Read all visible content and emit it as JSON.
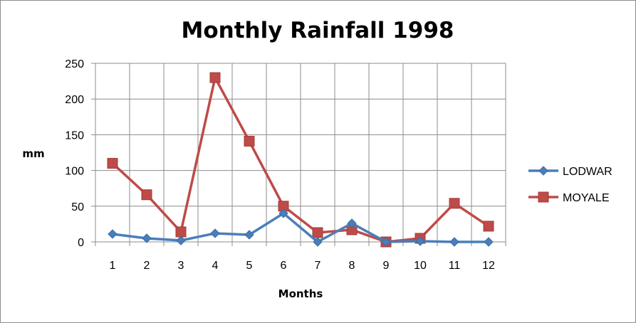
{
  "chart_data": {
    "type": "line",
    "title": "Monthly Rainfall 1998",
    "xlabel": "Months",
    "ylabel": "mm",
    "categories": [
      "1",
      "2",
      "3",
      "4",
      "5",
      "6",
      "7",
      "8",
      "9",
      "10",
      "11",
      "12"
    ],
    "ylim": [
      0,
      250
    ],
    "yticks": [
      0,
      50,
      100,
      150,
      200,
      250
    ],
    "grid": true,
    "legend_position": "right",
    "series": [
      {
        "name": "LODWAR",
        "color": "#4a7ebb",
        "marker": "diamond",
        "values": [
          11,
          5,
          2,
          12,
          10,
          40,
          0,
          26,
          0,
          1,
          0,
          0
        ]
      },
      {
        "name": "MOYALE",
        "color": "#be4b48",
        "marker": "square",
        "values": [
          110,
          66,
          14,
          230,
          141,
          50,
          13,
          17,
          0,
          5,
          54,
          22
        ]
      }
    ]
  }
}
